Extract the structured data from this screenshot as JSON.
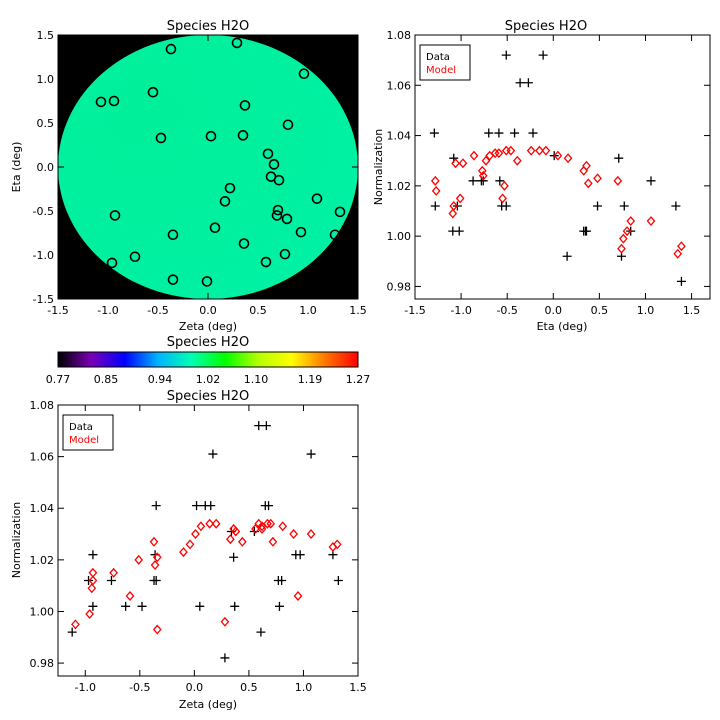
{
  "chart_data": [
    {
      "type": "heatmap",
      "title": "Species H2O",
      "xlabel": "Zeta (deg)",
      "ylabel": "Eta (deg)",
      "xlim": [
        -1.5,
        1.5
      ],
      "ylim": [
        -1.5,
        1.5
      ],
      "xticks": [
        "-1.5",
        "-1.0",
        "-0.5",
        "0.0",
        "0.5",
        "1.0",
        "1.5"
      ],
      "yticks": [
        "-1.5",
        "-1.0",
        "-0.5",
        "0.0",
        "0.5",
        "1.0",
        "1.5"
      ],
      "background": "#000000",
      "field_colors": [
        "#00ef9a",
        "#00f1a4"
      ],
      "marker_color": "#000000",
      "points": [
        [
          -0.37,
          1.34
        ],
        [
          0.29,
          1.41
        ],
        [
          0.96,
          1.06
        ],
        [
          -1.07,
          0.74
        ],
        [
          -0.94,
          0.75
        ],
        [
          -0.55,
          0.85
        ],
        [
          0.37,
          0.7
        ],
        [
          0.8,
          0.48
        ],
        [
          -0.47,
          0.33
        ],
        [
          0.03,
          0.35
        ],
        [
          0.35,
          0.36
        ],
        [
          0.6,
          0.15
        ],
        [
          0.66,
          0.03
        ],
        [
          0.63,
          -0.11
        ],
        [
          0.71,
          -0.15
        ],
        [
          0.22,
          -0.24
        ],
        [
          0.17,
          -0.39
        ],
        [
          0.7,
          -0.49
        ],
        [
          1.09,
          -0.36
        ],
        [
          0.69,
          -0.55
        ],
        [
          0.79,
          -0.59
        ],
        [
          1.32,
          -0.51
        ],
        [
          -0.93,
          -0.55
        ],
        [
          0.07,
          -0.69
        ],
        [
          -0.35,
          -0.77
        ],
        [
          0.93,
          -0.74
        ],
        [
          0.36,
          -0.87
        ],
        [
          1.27,
          -0.77
        ],
        [
          0.58,
          -1.08
        ],
        [
          -0.96,
          -1.09
        ],
        [
          -0.73,
          -1.02
        ],
        [
          0.77,
          -0.99
        ],
        [
          -0.35,
          -1.28
        ],
        [
          -0.01,
          -1.3
        ]
      ]
    },
    {
      "type": "colorbar",
      "title": "Species H2O",
      "min": 0.77,
      "max": 1.27,
      "tick_labels": [
        "0.77",
        "0.85",
        "0.94",
        "1.02",
        "1.10",
        "1.19",
        "1.27"
      ],
      "colors": [
        "#000000",
        "#7a00b8",
        "#0000ff",
        "#00b4ff",
        "#00ffb4",
        "#00ff00",
        "#b4ff00",
        "#ffff00",
        "#ff7800",
        "#ff0000"
      ]
    },
    {
      "type": "scatter",
      "title": "Species H2O",
      "xlabel": "Eta (deg)",
      "ylabel": "Normalization",
      "xlim": [
        -1.5,
        1.7
      ],
      "ylim": [
        0.975,
        1.08
      ],
      "xticks": [
        "-1.5",
        "-1.0",
        "-0.5",
        "0.0",
        "0.5",
        "1.0",
        "1.5"
      ],
      "yticks": [
        "0.98",
        "1.00",
        "1.02",
        "1.04",
        "1.06",
        "1.08"
      ],
      "legend": "top-left",
      "series": [
        {
          "name": "Data",
          "marker": "plus",
          "color": "#000000",
          "points": [
            [
              -1.29,
              1.041
            ],
            [
              -1.28,
              1.012
            ],
            [
              -1.08,
              1.031
            ],
            [
              -1.09,
              1.002
            ],
            [
              -1.02,
              1.002
            ],
            [
              -1.04,
              1.012
            ],
            [
              -0.87,
              1.022
            ],
            [
              -0.78,
              1.022
            ],
            [
              -0.76,
              1.022
            ],
            [
              -0.7,
              1.041
            ],
            [
              -0.59,
              1.041
            ],
            [
              -0.58,
              1.022
            ],
            [
              -0.56,
              1.012
            ],
            [
              -0.51,
              1.012
            ],
            [
              -0.51,
              1.072
            ],
            [
              -0.42,
              1.041
            ],
            [
              -0.36,
              1.061
            ],
            [
              -0.27,
              1.061
            ],
            [
              -0.22,
              1.041
            ],
            [
              -0.11,
              1.072
            ],
            [
              0.01,
              1.032
            ],
            [
              0.15,
              0.992
            ],
            [
              0.33,
              1.002
            ],
            [
              0.35,
              1.002
            ],
            [
              0.36,
              1.002
            ],
            [
              0.48,
              1.012
            ],
            [
              0.71,
              1.031
            ],
            [
              0.74,
              0.992
            ],
            [
              0.77,
              1.012
            ],
            [
              0.84,
              1.002
            ],
            [
              1.06,
              1.022
            ],
            [
              1.33,
              1.012
            ],
            [
              1.39,
              0.982
            ]
          ]
        },
        {
          "name": "Model",
          "marker": "diamond",
          "color": "#ff0000",
          "points": [
            [
              -1.28,
              1.022
            ],
            [
              -1.27,
              1.018
            ],
            [
              -1.09,
              1.009
            ],
            [
              -1.08,
              1.012
            ],
            [
              -1.06,
              1.029
            ],
            [
              -1.01,
              1.015
            ],
            [
              -0.98,
              1.029
            ],
            [
              -0.86,
              1.032
            ],
            [
              -0.77,
              1.026
            ],
            [
              -0.76,
              1.024
            ],
            [
              -0.73,
              1.03
            ],
            [
              -0.69,
              1.032
            ],
            [
              -0.63,
              1.033
            ],
            [
              -0.59,
              1.033
            ],
            [
              -0.55,
              1.015
            ],
            [
              -0.53,
              1.02
            ],
            [
              -0.51,
              1.034
            ],
            [
              -0.46,
              1.034
            ],
            [
              -0.39,
              1.03
            ],
            [
              -0.24,
              1.034
            ],
            [
              -0.15,
              1.034
            ],
            [
              -0.08,
              1.034
            ],
            [
              0.05,
              1.032
            ],
            [
              0.16,
              1.031
            ],
            [
              0.33,
              1.026
            ],
            [
              0.36,
              1.028
            ],
            [
              0.38,
              1.021
            ],
            [
              0.48,
              1.023
            ],
            [
              0.7,
              1.022
            ],
            [
              0.74,
              0.995
            ],
            [
              0.76,
              0.999
            ],
            [
              0.84,
              1.006
            ],
            [
              0.8,
              1.002
            ],
            [
              1.06,
              1.006
            ],
            [
              1.35,
              0.993
            ],
            [
              1.39,
              0.996
            ]
          ]
        }
      ]
    },
    {
      "type": "scatter",
      "title": "Species H2O",
      "xlabel": "Zeta (deg)",
      "ylabel": "Normalization",
      "xlim": [
        -1.25,
        1.5
      ],
      "ylim": [
        0.975,
        1.08
      ],
      "xticks": [
        "-1.0",
        "-0.5",
        "0.0",
        "0.5",
        "1.0",
        "1.5"
      ],
      "yticks": [
        "0.98",
        "1.00",
        "1.02",
        "1.04",
        "1.06",
        "1.08"
      ],
      "legend": "top-left",
      "series": [
        {
          "name": "Data",
          "marker": "plus",
          "color": "#000000",
          "points": [
            [
              -1.12,
              0.992
            ],
            [
              -0.97,
              1.012
            ],
            [
              -0.93,
              1.022
            ],
            [
              -0.93,
              1.002
            ],
            [
              -0.76,
              1.012
            ],
            [
              -0.63,
              1.002
            ],
            [
              -0.48,
              1.002
            ],
            [
              -0.37,
              1.012
            ],
            [
              -0.35,
              1.012
            ],
            [
              -0.36,
              1.022
            ],
            [
              -0.35,
              1.041
            ],
            [
              0.17,
              1.061
            ],
            [
              0.02,
              1.041
            ],
            [
              0.1,
              1.041
            ],
            [
              0.05,
              1.002
            ],
            [
              0.15,
              1.041
            ],
            [
              0.28,
              0.982
            ],
            [
              0.34,
              1.031
            ],
            [
              0.37,
              1.002
            ],
            [
              0.36,
              1.021
            ],
            [
              0.55,
              1.031
            ],
            [
              0.61,
              0.992
            ],
            [
              0.59,
              1.072
            ],
            [
              0.66,
              1.072
            ],
            [
              0.65,
              1.041
            ],
            [
              0.68,
              1.041
            ],
            [
              0.77,
              1.012
            ],
            [
              0.8,
              1.012
            ],
            [
              0.78,
              1.002
            ],
            [
              0.93,
              1.022
            ],
            [
              0.97,
              1.022
            ],
            [
              1.07,
              1.061
            ],
            [
              1.27,
              1.022
            ],
            [
              1.32,
              1.012
            ]
          ]
        },
        {
          "name": "Model",
          "marker": "diamond",
          "color": "#ff0000",
          "points": [
            [
              -1.09,
              0.995
            ],
            [
              -0.96,
              0.999
            ],
            [
              -0.94,
              1.009
            ],
            [
              -0.93,
              1.015
            ],
            [
              -0.93,
              1.012
            ],
            [
              -0.74,
              1.015
            ],
            [
              -0.59,
              1.006
            ],
            [
              -0.51,
              1.02
            ],
            [
              -0.36,
              1.018
            ],
            [
              -0.37,
              1.027
            ],
            [
              -0.34,
              1.021
            ],
            [
              -0.34,
              0.993
            ],
            [
              -0.1,
              1.023
            ],
            [
              -0.04,
              1.026
            ],
            [
              0.01,
              1.03
            ],
            [
              0.06,
              1.033
            ],
            [
              0.14,
              1.034
            ],
            [
              0.2,
              1.034
            ],
            [
              0.28,
              0.996
            ],
            [
              0.33,
              1.028
            ],
            [
              0.36,
              1.032
            ],
            [
              0.38,
              1.031
            ],
            [
              0.44,
              1.027
            ],
            [
              0.56,
              1.032
            ],
            [
              0.59,
              1.034
            ],
            [
              0.62,
              1.033
            ],
            [
              0.62,
              1.032
            ],
            [
              0.67,
              1.034
            ],
            [
              0.7,
              1.034
            ],
            [
              0.72,
              1.027
            ],
            [
              0.81,
              1.033
            ],
            [
              0.91,
              1.03
            ],
            [
              0.95,
              1.006
            ],
            [
              1.07,
              1.03
            ],
            [
              1.27,
              1.025
            ],
            [
              1.31,
              1.026
            ]
          ]
        }
      ]
    }
  ]
}
